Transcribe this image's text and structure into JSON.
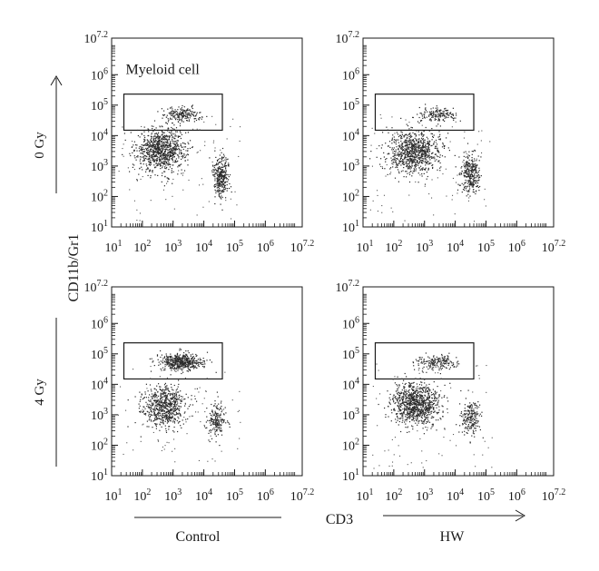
{
  "figure": {
    "y_axis_title": "CD11b/Gr1",
    "x_axis_title": "CD3",
    "row_labels": [
      "0 Gy",
      "4 Gy"
    ],
    "column_labels": [
      "Control",
      "HW"
    ],
    "gate_annotation": "Myeloid cell"
  },
  "chart_data": [
    {
      "type": "scatter",
      "row": "0 Gy",
      "column": "Control",
      "xscale": "log",
      "yscale": "log",
      "xlim": [
        10,
        15848932
      ],
      "ylim": [
        10,
        15848932
      ],
      "x_ticks": [
        "10^1",
        "10^2",
        "10^3",
        "10^4",
        "10^5",
        "10^6",
        "10^7.2"
      ],
      "y_ticks": [
        "10^1",
        "10^2",
        "10^3",
        "10^4",
        "10^5",
        "10^6",
        "10^7.2"
      ],
      "gate": {
        "label": "Myeloid cell",
        "x_range": [
          25,
          40000
        ],
        "y_range": [
          15000,
          230000
        ]
      },
      "populations": [
        {
          "center": [
            400,
            3500
          ],
          "n": 900,
          "spread": [
            0.4,
            0.35
          ]
        },
        {
          "center": [
            2000,
            50000
          ],
          "n": 200,
          "spread": [
            0.3,
            0.12
          ]
        },
        {
          "center": [
            35000,
            500
          ],
          "n": 320,
          "spread": [
            0.14,
            0.35
          ]
        }
      ]
    },
    {
      "type": "scatter",
      "row": "0 Gy",
      "column": "HW",
      "xscale": "log",
      "yscale": "log",
      "xlim": [
        10,
        15848932
      ],
      "ylim": [
        10,
        15848932
      ],
      "x_ticks": [
        "10^1",
        "10^2",
        "10^3",
        "10^4",
        "10^5",
        "10^6",
        "10^7.2"
      ],
      "y_ticks": [
        "10^1",
        "10^2",
        "10^3",
        "10^4",
        "10^5",
        "10^6",
        "10^7.2"
      ],
      "gate": {
        "x_range": [
          25,
          40000
        ],
        "y_range": [
          15000,
          230000
        ]
      },
      "populations": [
        {
          "center": [
            450,
            3000
          ],
          "n": 850,
          "spread": [
            0.42,
            0.35
          ]
        },
        {
          "center": [
            2500,
            50000
          ],
          "n": 160,
          "spread": [
            0.3,
            0.12
          ]
        },
        {
          "center": [
            30000,
            550
          ],
          "n": 300,
          "spread": [
            0.15,
            0.35
          ]
        }
      ]
    },
    {
      "type": "scatter",
      "row": "4 Gy",
      "column": "Control",
      "xscale": "log",
      "yscale": "log",
      "xlim": [
        10,
        15848932
      ],
      "ylim": [
        10,
        15848932
      ],
      "x_ticks": [
        "10^1",
        "10^2",
        "10^3",
        "10^4",
        "10^5",
        "10^6",
        "10^7.2"
      ],
      "y_ticks": [
        "10^1",
        "10^2",
        "10^3",
        "10^4",
        "10^5",
        "10^6",
        "10^7.2"
      ],
      "gate": {
        "x_range": [
          25,
          40000
        ],
        "y_range": [
          15000,
          230000
        ]
      },
      "populations": [
        {
          "center": [
            1800,
            55000
          ],
          "n": 500,
          "spread": [
            0.35,
            0.14
          ]
        },
        {
          "center": [
            500,
            2000
          ],
          "n": 650,
          "spread": [
            0.35,
            0.35
          ]
        },
        {
          "center": [
            25000,
            700
          ],
          "n": 180,
          "spread": [
            0.15,
            0.3
          ]
        }
      ]
    },
    {
      "type": "scatter",
      "row": "4 Gy",
      "column": "HW",
      "xscale": "log",
      "yscale": "log",
      "xlim": [
        10,
        15848932
      ],
      "ylim": [
        10,
        15848932
      ],
      "x_ticks": [
        "10^1",
        "10^2",
        "10^3",
        "10^4",
        "10^5",
        "10^6",
        "10^7.2"
      ],
      "y_ticks": [
        "10^1",
        "10^2",
        "10^3",
        "10^4",
        "10^5",
        "10^6",
        "10^7.2"
      ],
      "gate": {
        "x_range": [
          25,
          40000
        ],
        "y_range": [
          15000,
          230000
        ]
      },
      "populations": [
        {
          "center": [
            500,
            2500
          ],
          "n": 950,
          "spread": [
            0.38,
            0.35
          ]
        },
        {
          "center": [
            2500,
            55000
          ],
          "n": 180,
          "spread": [
            0.3,
            0.12
          ]
        },
        {
          "center": [
            30000,
            800
          ],
          "n": 200,
          "spread": [
            0.15,
            0.3
          ]
        }
      ]
    }
  ]
}
